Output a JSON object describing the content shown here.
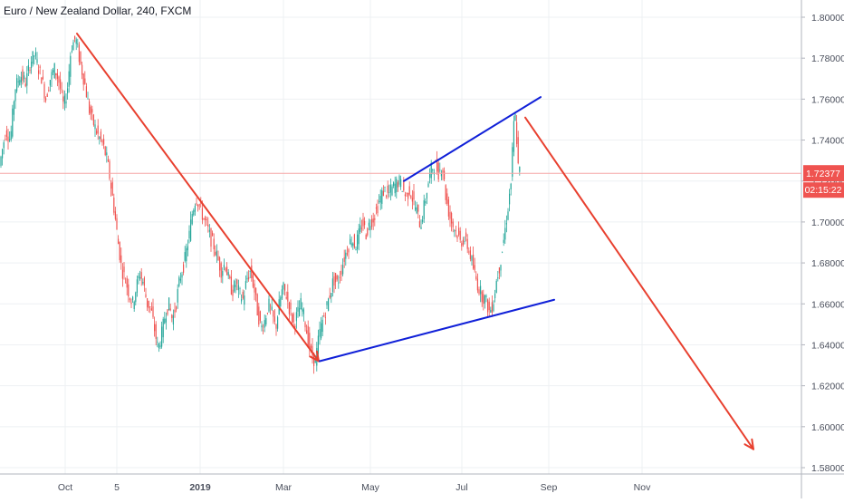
{
  "chart_data": {
    "type": "candlestick",
    "title": "Euro / New Zealand Dollar, 240, FXCM",
    "ylim": [
      1.575,
      1.81
    ],
    "y_ticks": [
      1.8,
      1.78,
      1.76,
      1.74,
      1.72,
      1.7,
      1.68,
      1.66,
      1.64,
      1.62,
      1.6,
      1.58
    ],
    "y_tick_labels": [
      "1.80000",
      "1.78000",
      "1.76000",
      "1.74000",
      "1.72000",
      "1.70000",
      "1.68000",
      "1.66000",
      "1.64000",
      "1.62000",
      "1.60000",
      "1.58000"
    ],
    "x_ticks": [
      "Oct",
      "5",
      "2019",
      "Mar",
      "May",
      "Jul",
      "Sep",
      "Nov"
    ],
    "last_price": 1.72377,
    "last_price_label": "1.72377",
    "countdown_label": "02:15:22",
    "price_path": [
      [
        0,
        1.725
      ],
      [
        4,
        1.735
      ],
      [
        8,
        1.745
      ],
      [
        13,
        1.74
      ],
      [
        18,
        1.765
      ],
      [
        24,
        1.772
      ],
      [
        30,
        1.768
      ],
      [
        35,
        1.778
      ],
      [
        40,
        1.782
      ],
      [
        44,
        1.775
      ],
      [
        48,
        1.77
      ],
      [
        52,
        1.76
      ],
      [
        57,
        1.77
      ],
      [
        62,
        1.775
      ],
      [
        67,
        1.768
      ],
      [
        72,
        1.756
      ],
      [
        76,
        1.765
      ],
      [
        80,
        1.785
      ],
      [
        85,
        1.79
      ],
      [
        90,
        1.778
      ],
      [
        95,
        1.768
      ],
      [
        100,
        1.755
      ],
      [
        105,
        1.748
      ],
      [
        110,
        1.742
      ],
      [
        115,
        1.738
      ],
      [
        120,
        1.73
      ],
      [
        124,
        1.718
      ],
      [
        128,
        1.705
      ],
      [
        132,
        1.69
      ],
      [
        136,
        1.677
      ],
      [
        140,
        1.672
      ],
      [
        144,
        1.665
      ],
      [
        148,
        1.66
      ],
      [
        152,
        1.668
      ],
      [
        156,
        1.675
      ],
      [
        160,
        1.67
      ],
      [
        164,
        1.66
      ],
      [
        168,
        1.658
      ],
      [
        172,
        1.648
      ],
      [
        176,
        1.638
      ],
      [
        180,
        1.645
      ],
      [
        184,
        1.655
      ],
      [
        188,
        1.66
      ],
      [
        192,
        1.652
      ],
      [
        196,
        1.66
      ],
      [
        200,
        1.672
      ],
      [
        205,
        1.68
      ],
      [
        210,
        1.692
      ],
      [
        214,
        1.705
      ],
      [
        218,
        1.712
      ],
      [
        222,
        1.708
      ],
      [
        226,
        1.702
      ],
      [
        230,
        1.698
      ],
      [
        234,
        1.692
      ],
      [
        238,
        1.688
      ],
      [
        242,
        1.682
      ],
      [
        246,
        1.676
      ],
      [
        250,
        1.68
      ],
      [
        254,
        1.672
      ],
      [
        258,
        1.666
      ],
      [
        262,
        1.67
      ],
      [
        266,
        1.665
      ],
      [
        270,
        1.662
      ],
      [
        274,
        1.672
      ],
      [
        278,
        1.676
      ],
      [
        282,
        1.668
      ],
      [
        286,
        1.656
      ],
      [
        290,
        1.648
      ],
      [
        294,
        1.652
      ],
      [
        298,
        1.66
      ],
      [
        302,
        1.655
      ],
      [
        306,
        1.648
      ],
      [
        310,
        1.66
      ],
      [
        314,
        1.668
      ],
      [
        318,
        1.664
      ],
      [
        322,
        1.656
      ],
      [
        326,
        1.65
      ],
      [
        330,
        1.655
      ],
      [
        334,
        1.66
      ],
      [
        338,
        1.652
      ],
      [
        342,
        1.642
      ],
      [
        346,
        1.634
      ],
      [
        350,
        1.632
      ],
      [
        354,
        1.645
      ],
      [
        358,
        1.652
      ],
      [
        362,
        1.658
      ],
      [
        366,
        1.665
      ],
      [
        370,
        1.672
      ],
      [
        374,
        1.67
      ],
      [
        378,
        1.676
      ],
      [
        382,
        1.683
      ],
      [
        386,
        1.688
      ],
      [
        390,
        1.692
      ],
      [
        394,
        1.688
      ],
      [
        398,
        1.694
      ],
      [
        402,
        1.7
      ],
      [
        406,
        1.694
      ],
      [
        410,
        1.7
      ],
      [
        414,
        1.702
      ],
      [
        418,
        1.707
      ],
      [
        422,
        1.712
      ],
      [
        426,
        1.716
      ],
      [
        430,
        1.713
      ],
      [
        434,
        1.716
      ],
      [
        438,
        1.718
      ],
      [
        442,
        1.72
      ],
      [
        446,
        1.717
      ],
      [
        450,
        1.712
      ],
      [
        454,
        1.716
      ],
      [
        458,
        1.71
      ],
      [
        462,
        1.705
      ],
      [
        466,
        1.698
      ],
      [
        470,
        1.708
      ],
      [
        474,
        1.718
      ],
      [
        478,
        1.726
      ],
      [
        482,
        1.728
      ],
      [
        486,
        1.724
      ],
      [
        490,
        1.728
      ],
      [
        494,
        1.712
      ],
      [
        498,
        1.703
      ],
      [
        502,
        1.698
      ],
      [
        506,
        1.695
      ],
      [
        510,
        1.69
      ],
      [
        514,
        1.692
      ],
      [
        518,
        1.688
      ],
      [
        522,
        1.682
      ],
      [
        526,
        1.674
      ],
      [
        530,
        1.668
      ],
      [
        534,
        1.664
      ],
      [
        538,
        1.662
      ],
      [
        542,
        1.656
      ],
      [
        546,
        1.66
      ],
      [
        550,
        1.672
      ],
      [
        554,
        1.68
      ],
      [
        558,
        1.692
      ],
      [
        562,
        1.705
      ],
      [
        566,
        1.72
      ],
      [
        568,
        1.74
      ],
      [
        570,
        1.755
      ],
      [
        572,
        1.742
      ],
      [
        574,
        1.725
      ]
    ],
    "annotations": [
      {
        "kind": "red-arrow-down",
        "from": [
          85,
          1.792
        ],
        "to": [
          352,
          1.632
        ]
      },
      {
        "kind": "blue-line-lower",
        "from": [
          353,
          1.632
        ],
        "to": [
          612,
          1.662
        ]
      },
      {
        "kind": "blue-line-upper",
        "from": [
          446,
          1.72
        ],
        "to": [
          597,
          1.761
        ]
      },
      {
        "kind": "red-arrow-forecast",
        "from": [
          580,
          1.751
        ],
        "to": [
          832,
          1.589
        ]
      }
    ],
    "colors": {
      "up": "#26a69a",
      "down": "#ef5350",
      "red_arrow": "#e8402f",
      "blue_line": "#1020d8",
      "price_line": "#f5a5a5",
      "price_label_bg": "#ef5350",
      "grid": "#eef0f3",
      "axis_text": "#4a4f5c"
    }
  }
}
